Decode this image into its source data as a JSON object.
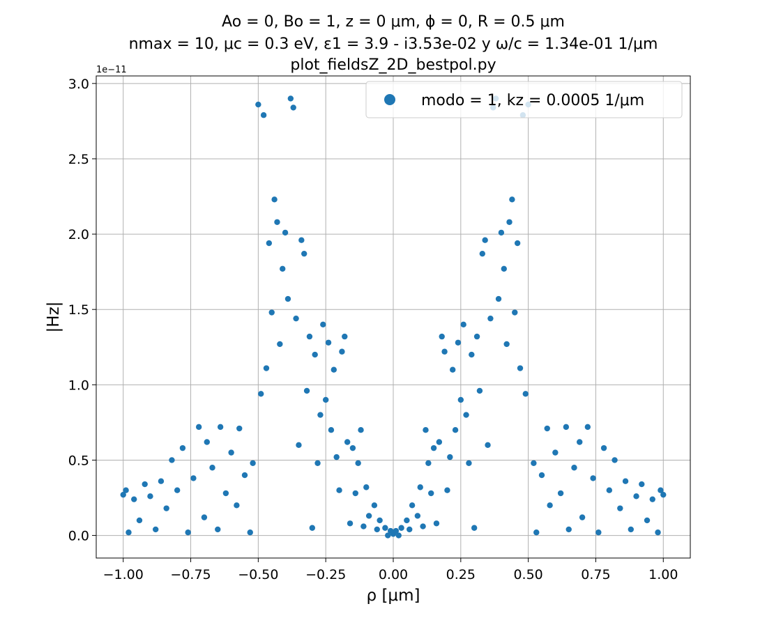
{
  "chart_data": {
    "type": "scatter",
    "title": [
      "Ao = 0, Bo = 1, z = 0 μm, ϕ = 0, R = 0.5 μm",
      "nmax = 10, μc = 0.3 eV, ε1 = 3.9 - i3.53e-02 y ω/c = 1.34e-01 1/μm",
      "plot_fieldsZ_2D_bestpol.py"
    ],
    "xlabel": "ρ [μm]",
    "ylabel": "|Hz|",
    "y_offset_label": "1e−11",
    "xlim": [
      -1.1,
      1.1
    ],
    "ylim": [
      -0.15,
      3.05
    ],
    "xticks": [
      -1.0,
      -0.75,
      -0.5,
      -0.25,
      0.0,
      0.25,
      0.5,
      0.75,
      1.0
    ],
    "xtick_labels": [
      "−1.00",
      "−0.75",
      "−0.50",
      "−0.25",
      "0.00",
      "0.25",
      "0.50",
      "0.75",
      "1.00"
    ],
    "yticks": [
      0.0,
      0.5,
      1.0,
      1.5,
      2.0,
      2.5,
      3.0
    ],
    "ytick_labels": [
      "0.0",
      "0.5",
      "1.0",
      "1.5",
      "2.0",
      "2.5",
      "3.0"
    ],
    "grid": true,
    "legend_position": "top-right",
    "series": [
      {
        "name": "modo = 1, kz = 0.0005 1/μm",
        "color": "#1f77b4",
        "points": [
          [
            0.0,
            0.01
          ],
          [
            0.01,
            0.03
          ],
          [
            -0.01,
            0.03
          ],
          [
            0.02,
            0.0
          ],
          [
            -0.02,
            0.0
          ],
          [
            0.03,
            0.05
          ],
          [
            -0.03,
            0.05
          ],
          [
            0.05,
            0.1
          ],
          [
            -0.05,
            0.1
          ],
          [
            0.06,
            0.04
          ],
          [
            -0.06,
            0.04
          ],
          [
            0.07,
            0.2
          ],
          [
            -0.07,
            0.2
          ],
          [
            0.09,
            0.13
          ],
          [
            -0.09,
            0.13
          ],
          [
            0.1,
            0.32
          ],
          [
            -0.1,
            0.32
          ],
          [
            0.11,
            0.06
          ],
          [
            -0.11,
            0.06
          ],
          [
            0.12,
            0.7
          ],
          [
            -0.12,
            0.7
          ],
          [
            0.13,
            0.48
          ],
          [
            -0.13,
            0.48
          ],
          [
            0.14,
            0.28
          ],
          [
            -0.14,
            0.28
          ],
          [
            0.15,
            0.58
          ],
          [
            -0.15,
            0.58
          ],
          [
            0.16,
            0.08
          ],
          [
            -0.16,
            0.08
          ],
          [
            0.17,
            0.62
          ],
          [
            -0.17,
            0.62
          ],
          [
            0.18,
            1.32
          ],
          [
            -0.18,
            1.32
          ],
          [
            0.19,
            1.22
          ],
          [
            -0.19,
            1.22
          ],
          [
            0.2,
            0.3
          ],
          [
            -0.2,
            0.3
          ],
          [
            0.21,
            0.52
          ],
          [
            -0.21,
            0.52
          ],
          [
            0.22,
            1.1
          ],
          [
            -0.22,
            1.1
          ],
          [
            0.23,
            0.7
          ],
          [
            -0.23,
            0.7
          ],
          [
            0.24,
            1.28
          ],
          [
            -0.24,
            1.28
          ],
          [
            0.25,
            0.9
          ],
          [
            -0.25,
            0.9
          ],
          [
            0.26,
            1.4
          ],
          [
            -0.26,
            1.4
          ],
          [
            0.27,
            0.8
          ],
          [
            -0.27,
            0.8
          ],
          [
            0.28,
            0.48
          ],
          [
            -0.28,
            0.48
          ],
          [
            0.29,
            1.2
          ],
          [
            -0.29,
            1.2
          ],
          [
            0.3,
            0.05
          ],
          [
            -0.3,
            0.05
          ],
          [
            0.31,
            1.32
          ],
          [
            -0.31,
            1.32
          ],
          [
            0.32,
            0.96
          ],
          [
            -0.32,
            0.96
          ],
          [
            0.33,
            1.87
          ],
          [
            -0.33,
            1.87
          ],
          [
            0.34,
            1.96
          ],
          [
            -0.34,
            1.96
          ],
          [
            0.35,
            0.6
          ],
          [
            -0.35,
            0.6
          ],
          [
            0.36,
            1.44
          ],
          [
            -0.36,
            1.44
          ],
          [
            0.37,
            2.84
          ],
          [
            -0.37,
            2.84
          ],
          [
            0.38,
            2.9
          ],
          [
            -0.38,
            2.9
          ],
          [
            0.39,
            1.57
          ],
          [
            -0.39,
            1.57
          ],
          [
            0.4,
            2.01
          ],
          [
            -0.4,
            2.01
          ],
          [
            0.41,
            1.77
          ],
          [
            -0.41,
            1.77
          ],
          [
            0.42,
            1.27
          ],
          [
            -0.42,
            1.27
          ],
          [
            0.43,
            2.08
          ],
          [
            -0.43,
            2.08
          ],
          [
            0.44,
            2.23
          ],
          [
            -0.44,
            2.23
          ],
          [
            0.45,
            1.48
          ],
          [
            -0.45,
            1.48
          ],
          [
            0.46,
            1.94
          ],
          [
            -0.46,
            1.94
          ],
          [
            0.47,
            1.11
          ],
          [
            -0.47,
            1.11
          ],
          [
            0.48,
            2.79
          ],
          [
            -0.48,
            2.79
          ],
          [
            0.49,
            0.94
          ],
          [
            -0.49,
            0.94
          ],
          [
            0.5,
            2.86
          ],
          [
            -0.5,
            2.86
          ],
          [
            0.52,
            0.48
          ],
          [
            -0.52,
            0.48
          ],
          [
            0.53,
            0.02
          ],
          [
            -0.53,
            0.02
          ],
          [
            0.55,
            0.4
          ],
          [
            -0.55,
            0.4
          ],
          [
            0.57,
            0.71
          ],
          [
            -0.57,
            0.71
          ],
          [
            0.58,
            0.2
          ],
          [
            -0.58,
            0.2
          ],
          [
            0.6,
            0.55
          ],
          [
            -0.6,
            0.55
          ],
          [
            0.62,
            0.28
          ],
          [
            -0.62,
            0.28
          ],
          [
            0.64,
            0.72
          ],
          [
            -0.64,
            0.72
          ],
          [
            0.65,
            0.04
          ],
          [
            -0.65,
            0.04
          ],
          [
            0.67,
            0.45
          ],
          [
            -0.67,
            0.45
          ],
          [
            0.69,
            0.62
          ],
          [
            -0.69,
            0.62
          ],
          [
            0.7,
            0.12
          ],
          [
            -0.7,
            0.12
          ],
          [
            0.72,
            0.72
          ],
          [
            -0.72,
            0.72
          ],
          [
            0.74,
            0.38
          ],
          [
            -0.74,
            0.38
          ],
          [
            0.76,
            0.02
          ],
          [
            -0.76,
            0.02
          ],
          [
            0.78,
            0.58
          ],
          [
            -0.78,
            0.58
          ],
          [
            0.8,
            0.3
          ],
          [
            -0.8,
            0.3
          ],
          [
            0.82,
            0.5
          ],
          [
            -0.82,
            0.5
          ],
          [
            0.84,
            0.18
          ],
          [
            -0.84,
            0.18
          ],
          [
            0.86,
            0.36
          ],
          [
            -0.86,
            0.36
          ],
          [
            0.88,
            0.04
          ],
          [
            -0.88,
            0.04
          ],
          [
            0.9,
            0.26
          ],
          [
            -0.9,
            0.26
          ],
          [
            0.92,
            0.34
          ],
          [
            -0.92,
            0.34
          ],
          [
            0.94,
            0.1
          ],
          [
            -0.94,
            0.1
          ],
          [
            0.96,
            0.24
          ],
          [
            -0.96,
            0.24
          ],
          [
            0.98,
            0.02
          ],
          [
            -0.98,
            0.02
          ],
          [
            0.99,
            0.3
          ],
          [
            -0.99,
            0.3
          ],
          [
            1.0,
            0.27
          ],
          [
            -1.0,
            0.27
          ]
        ]
      }
    ]
  }
}
